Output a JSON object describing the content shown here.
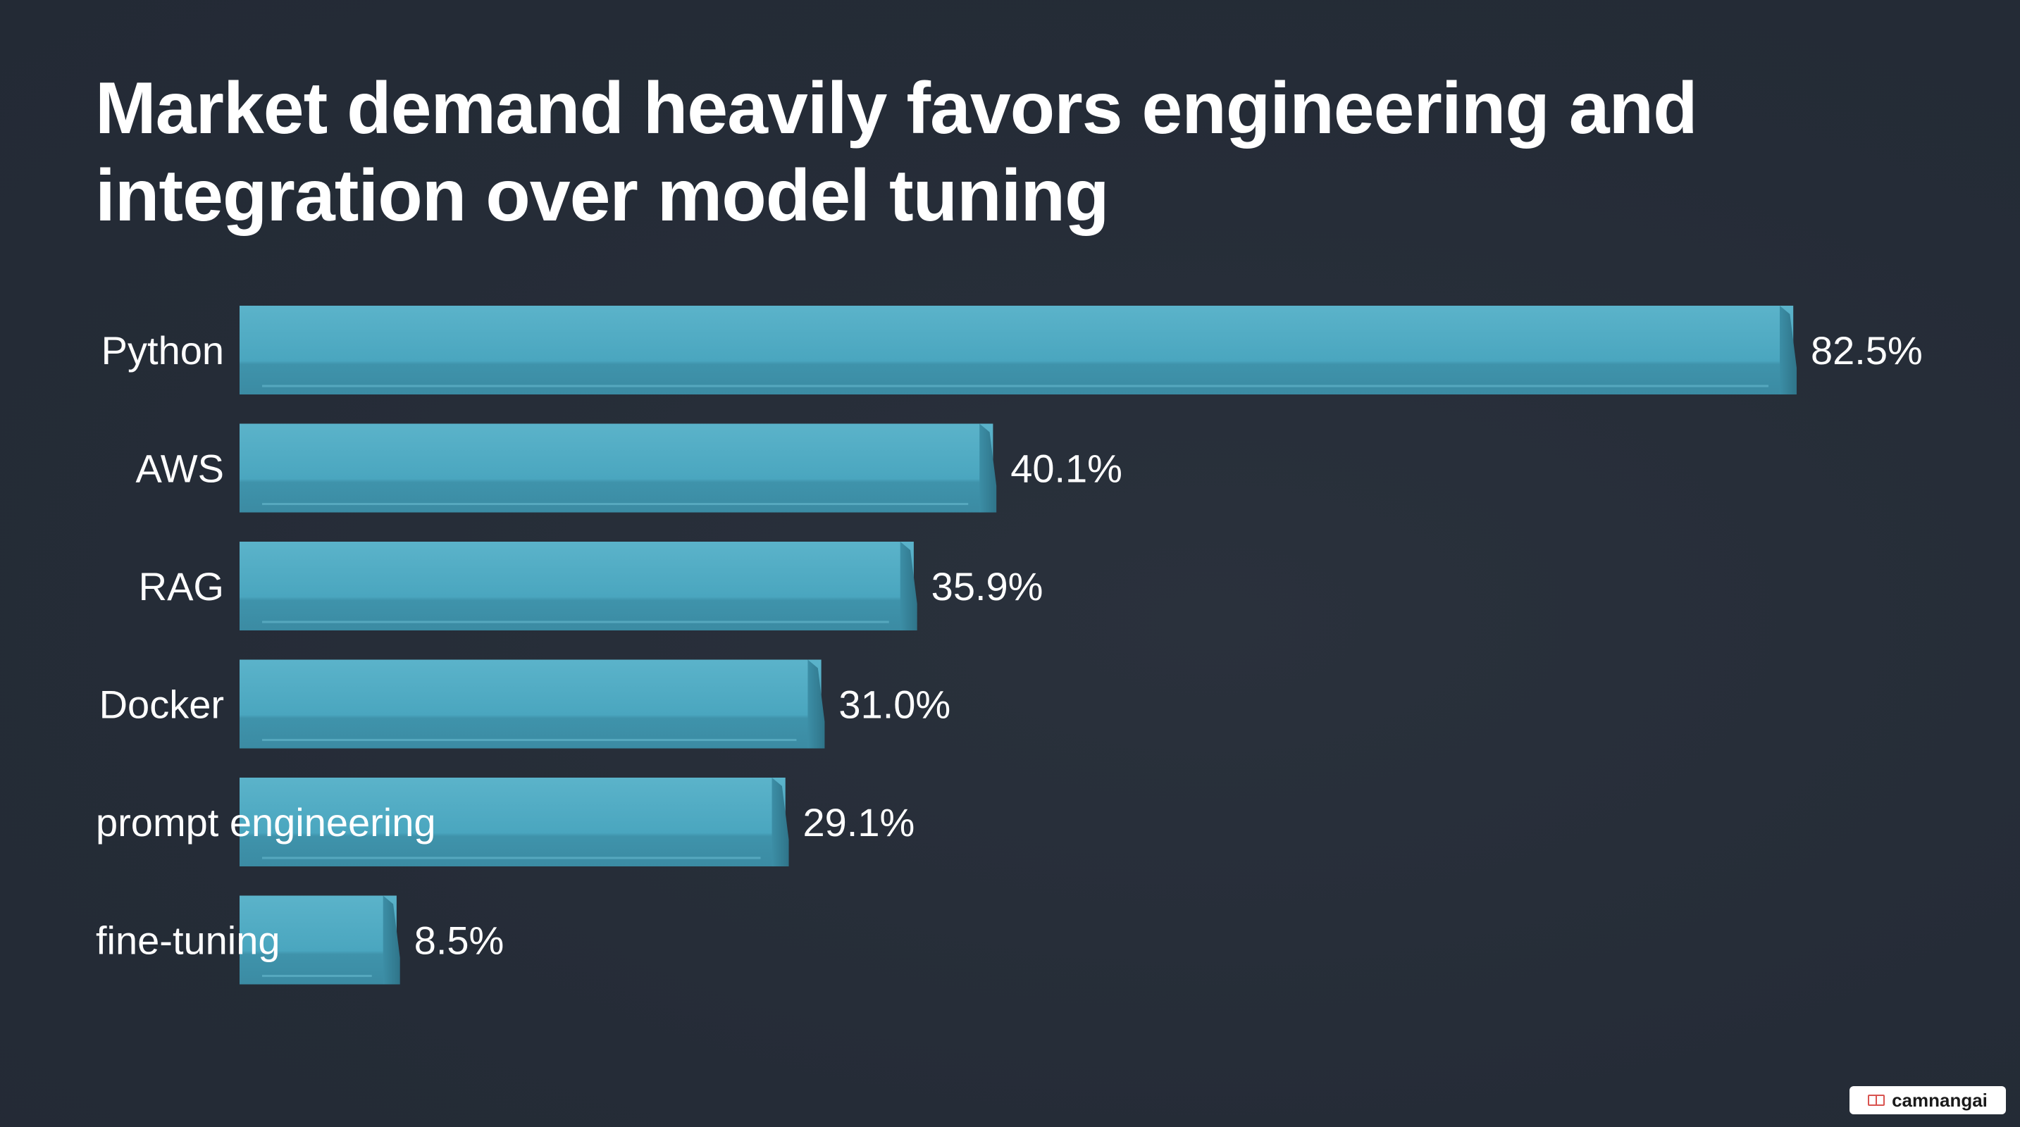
{
  "chart_data": {
    "type": "bar",
    "orientation": "horizontal",
    "title": "Market demand heavily favors engineering and integration over model tuning",
    "categories": [
      "Python",
      "AWS",
      "RAG",
      "Docker",
      "prompt engineering",
      "fine-tuning"
    ],
    "values": [
      82.5,
      40.1,
      35.9,
      31.0,
      29.1,
      8.5
    ],
    "value_labels": [
      "82.5%",
      "40.1%",
      "35.9%",
      "31.0%",
      "29.1%",
      "8.5%"
    ],
    "xlim": [
      0,
      82.5
    ],
    "grid": false,
    "legend": "none",
    "bar_color": "#4ea8c0"
  },
  "watermark": {
    "icon": "book-icon",
    "text": "camnangai"
  },
  "colors": {
    "background": "#262d38",
    "bar": "#4ea8c0",
    "bar_shade": "#3f8ea6",
    "bar_edge": "#6cc0d4",
    "text": "#ffffff"
  }
}
